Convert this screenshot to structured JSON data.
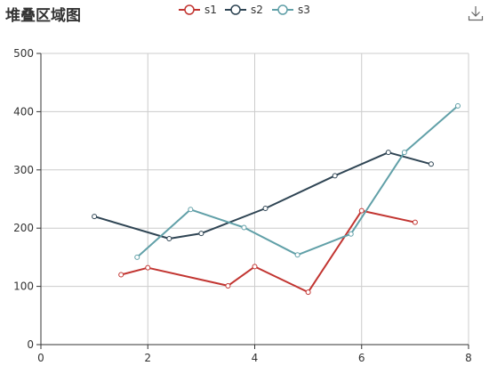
{
  "title": "堆叠区域图",
  "toolbar": {
    "download_icon": "download-icon"
  },
  "chart_data": {
    "type": "line",
    "title": "堆叠区域图",
    "xlabel": "",
    "ylabel": "",
    "xlim": [
      0,
      8
    ],
    "ylim": [
      0,
      500
    ],
    "xticks": [
      0,
      2,
      4,
      6,
      8
    ],
    "yticks": [
      0,
      100,
      200,
      300,
      400,
      500
    ],
    "grid": true,
    "legend_position": "top-center",
    "series": [
      {
        "name": "s1",
        "color": "#c23531",
        "points": [
          [
            1.5,
            120
          ],
          [
            2.0,
            132
          ],
          [
            3.5,
            101
          ],
          [
            4.0,
            134
          ],
          [
            5.0,
            90
          ],
          [
            6.0,
            230
          ],
          [
            7.0,
            210
          ]
        ]
      },
      {
        "name": "s2",
        "color": "#2f4554",
        "points": [
          [
            1.0,
            220
          ],
          [
            2.4,
            182
          ],
          [
            3.0,
            191
          ],
          [
            4.2,
            234
          ],
          [
            5.5,
            290
          ],
          [
            6.5,
            330
          ],
          [
            7.3,
            310
          ]
        ]
      },
      {
        "name": "s3",
        "color": "#61a0a8",
        "points": [
          [
            1.8,
            150
          ],
          [
            2.8,
            232
          ],
          [
            3.8,
            201
          ],
          [
            4.8,
            154
          ],
          [
            5.8,
            190
          ],
          [
            6.8,
            330
          ],
          [
            7.8,
            410
          ]
        ]
      }
    ]
  }
}
